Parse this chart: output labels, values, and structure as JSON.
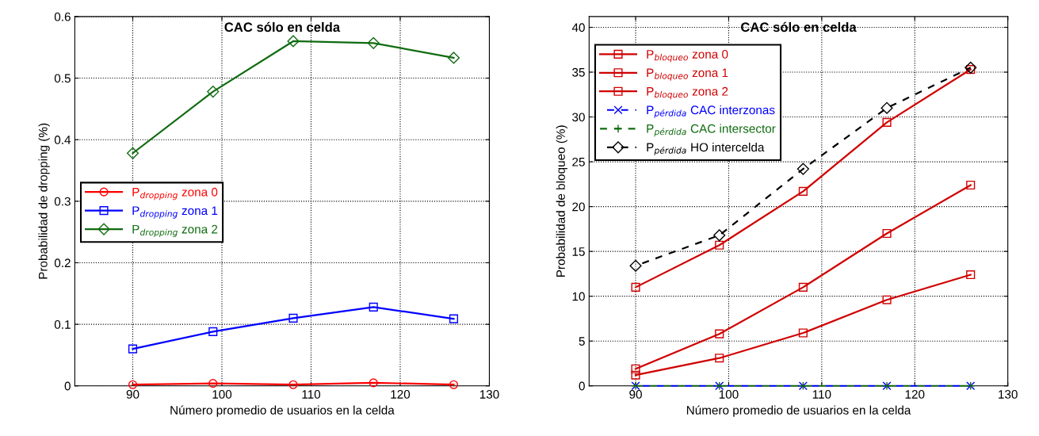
{
  "chart_data": [
    {
      "type": "line",
      "title": "CAC sólo en celda",
      "xlabel": "Número promedio de usuarios en la celda",
      "ylabel": "Probabilidad de dropping (%)",
      "x": [
        90,
        99,
        108,
        117,
        126
      ],
      "xlim": [
        83.5,
        130
      ],
      "xticks": [
        90,
        100,
        110,
        120,
        130
      ],
      "ylim": [
        0,
        0.6
      ],
      "yticks": [
        0,
        0.1,
        0.2,
        0.3,
        0.4,
        0.5,
        0.6
      ],
      "grid": true,
      "legend": "center left",
      "line_style": "solid",
      "series": [
        {
          "name": "P$_{dropping}$ zona 0",
          "color": "#ff0000",
          "marker": "circle",
          "values": [
            0.002,
            0.004,
            0.002,
            0.005,
            0.002
          ]
        },
        {
          "name": "P$_{dropping}$ zona 1",
          "color": "#0000ff",
          "marker": "square",
          "values": [
            0.06,
            0.088,
            0.11,
            0.128,
            0.109
          ]
        },
        {
          "name": "P$_{dropping}$ zona 2",
          "color": "#106b10",
          "marker": "diamond",
          "values": [
            0.378,
            0.478,
            0.56,
            0.557,
            0.533
          ]
        }
      ]
    },
    {
      "type": "line",
      "title": "CAC sólo en celda",
      "xlabel": "Número promedio de usuarios en la celda",
      "ylabel": "Probabilidad de bloqueo (%)",
      "x": [
        90,
        99,
        108,
        117,
        126
      ],
      "xlim": [
        85,
        130
      ],
      "xticks": [
        90,
        100,
        110,
        120,
        130
      ],
      "ylim": [
        0,
        41.2
      ],
      "yticks": [
        0,
        5,
        10,
        15,
        20,
        25,
        30,
        35,
        40
      ],
      "grid": true,
      "legend": "upper left",
      "line_style": "solid",
      "series": [
        {
          "name": "P$_{bloqueo}$ zona 0",
          "color": "#d00000",
          "marker": "square",
          "values": [
            1.2,
            3.1,
            5.9,
            9.6,
            12.4
          ]
        },
        {
          "name": "P$_{bloqueo}$ zona 1",
          "color": "#d00000",
          "marker": "square",
          "values": [
            1.9,
            5.8,
            11.0,
            17.0,
            22.4
          ]
        },
        {
          "name": "P$_{bloqueo}$ zona 2",
          "color": "#d00000",
          "marker": "square",
          "values": [
            11.0,
            15.7,
            21.7,
            29.4,
            35.3
          ]
        },
        {
          "name": "P$_{pérdida}$ CAC interzonas",
          "color": "#0000ff",
          "marker": "cross",
          "line_style": "dashed",
          "values": [
            0,
            0,
            0,
            0,
            0
          ]
        },
        {
          "name": "P$_{pérdida}$ CAC intersector",
          "color": "#106b10",
          "marker": "plus",
          "line_style": "dashed",
          "values": [
            0,
            0,
            0,
            0,
            0
          ]
        },
        {
          "name": "P$_{pérdida}$ HO intercelda",
          "color": "#000000",
          "marker": "diamond",
          "line_style": "dashed",
          "values": [
            13.4,
            16.8,
            24.2,
            31.0,
            35.5
          ]
        }
      ]
    }
  ]
}
